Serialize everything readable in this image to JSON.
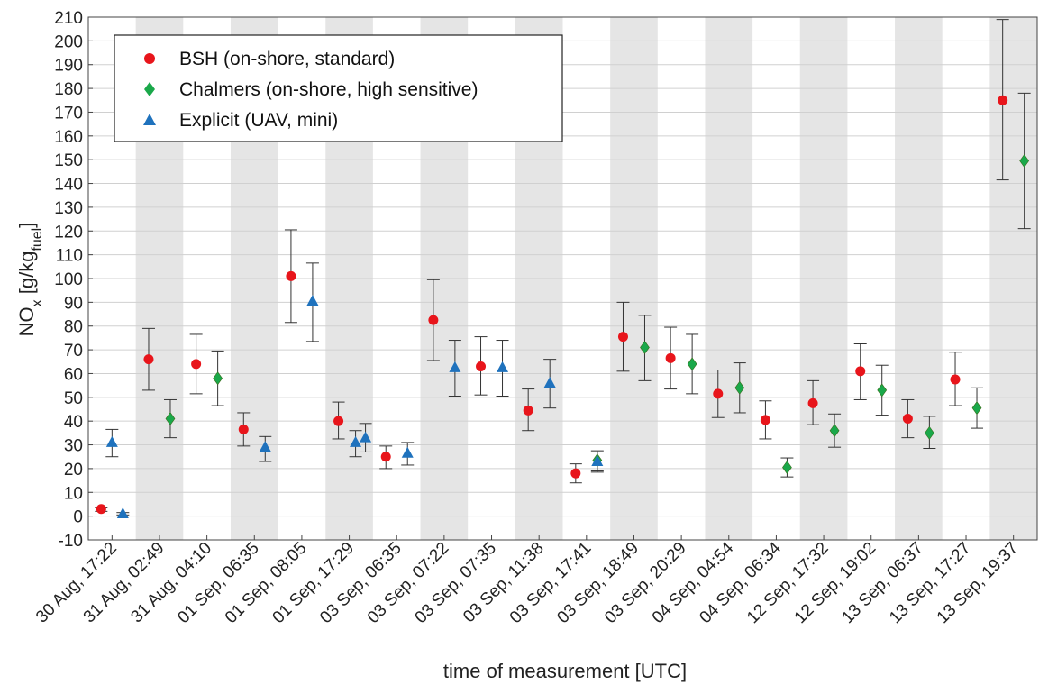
{
  "chart_data": {
    "type": "scatter",
    "title": "",
    "xlabel": "time of measurement [UTC]",
    "ylabel_parts": {
      "base": "NO",
      "sub1": "x",
      "mid": " [g/kg",
      "sub2": "fuel",
      "end": "]"
    },
    "ylim": [
      -10,
      210
    ],
    "ytick_step": 10,
    "grid": true,
    "alternating_shading": true,
    "legend_position": "top-left",
    "categories": [
      "30 Aug, 17:22",
      "31 Aug, 02:49",
      "31 Aug, 04:10",
      "01 Sep, 06:35",
      "01 Sep, 08:05",
      "01 Sep, 17:29",
      "03 Sep, 06:35",
      "03 Sep, 07:22",
      "03 Sep, 07:35",
      "03 Sep, 11:38",
      "03 Sep, 17:41",
      "03 Sep, 18:49",
      "03 Sep, 20:29",
      "04 Sep, 04:54",
      "04 Sep, 06:34",
      "12 Sep, 17:32",
      "12 Sep, 19:02",
      "13 Sep, 06:37",
      "13 Sep, 17:27",
      "13 Sep, 19:37"
    ],
    "series": [
      {
        "name": "BSH (on-shore, standard)",
        "marker": "circle",
        "color": "#e8151b",
        "points": [
          {
            "x": 0,
            "y": 3,
            "lo": 2,
            "hi": 3.5
          },
          {
            "x": 1,
            "y": 66,
            "lo": 53,
            "hi": 79
          },
          {
            "x": 2,
            "y": 64,
            "lo": 51.5,
            "hi": 76.5
          },
          {
            "x": 3,
            "y": 36.5,
            "lo": 29.5,
            "hi": 43.5
          },
          {
            "x": 4,
            "y": 101,
            "lo": 81.5,
            "hi": 120.5
          },
          {
            "x": 5,
            "y": 40,
            "lo": 32.5,
            "hi": 48
          },
          {
            "x": 6,
            "y": 25,
            "lo": 20,
            "hi": 29.5
          },
          {
            "x": 7,
            "y": 82.5,
            "lo": 65.5,
            "hi": 99.5
          },
          {
            "x": 8,
            "y": 63,
            "lo": 51,
            "hi": 75.5
          },
          {
            "x": 9,
            "y": 44.5,
            "lo": 36,
            "hi": 53.5
          },
          {
            "x": 10,
            "y": 18,
            "lo": 14,
            "hi": 22
          },
          {
            "x": 11,
            "y": 75.5,
            "lo": 61,
            "hi": 90
          },
          {
            "x": 12,
            "y": 66.5,
            "lo": 53.5,
            "hi": 79.5
          },
          {
            "x": 13,
            "y": 51.5,
            "lo": 41.5,
            "hi": 61.5
          },
          {
            "x": 14,
            "y": 40.5,
            "lo": 32.5,
            "hi": 48.5
          },
          {
            "x": 15,
            "y": 47.5,
            "lo": 38.5,
            "hi": 57
          },
          {
            "x": 16,
            "y": 61,
            "lo": 49,
            "hi": 72.5
          },
          {
            "x": 17,
            "y": 41,
            "lo": 33,
            "hi": 49
          },
          {
            "x": 18,
            "y": 57.5,
            "lo": 46.5,
            "hi": 69
          },
          {
            "x": 19,
            "y": 175,
            "lo": 141.5,
            "hi": 209
          }
        ]
      },
      {
        "name": "Chalmers (on-shore, high sensitive)",
        "marker": "diamond",
        "color": "#1aa84a",
        "points": [
          {
            "x": 1,
            "y": 41,
            "lo": 33,
            "hi": 49
          },
          {
            "x": 2,
            "y": 58,
            "lo": 46.5,
            "hi": 69.5
          },
          {
            "x": 10,
            "y": 23.5,
            "lo": 19,
            "hi": 27.5
          },
          {
            "x": 11,
            "y": 71,
            "lo": 57,
            "hi": 84.5
          },
          {
            "x": 12,
            "y": 64,
            "lo": 51.5,
            "hi": 76.5
          },
          {
            "x": 13,
            "y": 54,
            "lo": 43.5,
            "hi": 64.5
          },
          {
            "x": 14,
            "y": 20.5,
            "lo": 16.5,
            "hi": 24.5
          },
          {
            "x": 15,
            "y": 36,
            "lo": 29,
            "hi": 43
          },
          {
            "x": 16,
            "y": 53,
            "lo": 42.5,
            "hi": 63.5
          },
          {
            "x": 17,
            "y": 35,
            "lo": 28.5,
            "hi": 42
          },
          {
            "x": 18,
            "y": 45.5,
            "lo": 37,
            "hi": 54
          },
          {
            "x": 19,
            "y": 149.5,
            "lo": 121,
            "hi": 178
          }
        ]
      },
      {
        "name": "Explicit (UAV, mini)",
        "marker": "triangle",
        "color": "#1f72bd",
        "points": [
          {
            "x": 0,
            "y": 31,
            "lo": 25,
            "hi": 36.5
          },
          {
            "x": 0,
            "y": 1,
            "lo": 0.5,
            "hi": 1.5,
            "offset": "right"
          },
          {
            "x": 3,
            "y": 29,
            "lo": 23,
            "hi": 33.5
          },
          {
            "x": 4,
            "y": 90.5,
            "lo": 73.5,
            "hi": 106.5
          },
          {
            "x": 5,
            "y": 31,
            "lo": 25,
            "hi": 36
          },
          {
            "x": 5,
            "y": 33,
            "lo": 27,
            "hi": 39,
            "offset": "far"
          },
          {
            "x": 6,
            "y": 26.5,
            "lo": 21.5,
            "hi": 31
          },
          {
            "x": 7,
            "y": 62.5,
            "lo": 50.5,
            "hi": 74
          },
          {
            "x": 8,
            "y": 62.5,
            "lo": 50.5,
            "hi": 74
          },
          {
            "x": 9,
            "y": 56,
            "lo": 45.5,
            "hi": 66
          },
          {
            "x": 10,
            "y": 23,
            "lo": 18.5,
            "hi": 27
          }
        ]
      }
    ]
  }
}
